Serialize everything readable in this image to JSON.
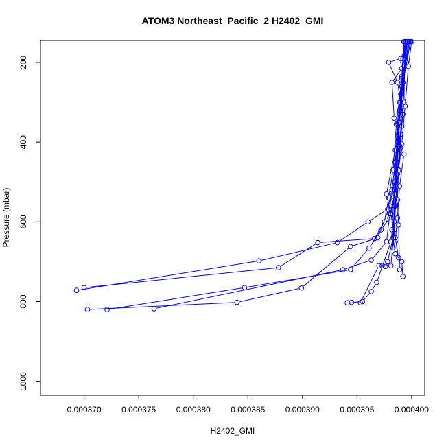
{
  "chart_data": {
    "type": "line",
    "title": "ATOM3 Northeast_Pacific_2 H2402_GMI",
    "xlabel": "H2402_GMI",
    "ylabel": "Pressure (mbar)",
    "xlim": [
      0.000366,
      0.0004012
    ],
    "ylim": [
      1035,
      145
    ],
    "y_reversed": true,
    "x_ticks": [
      "0.000370",
      "0.000375",
      "0.000380",
      "0.000385",
      "0.000390",
      "0.000395",
      "0.000400"
    ],
    "x_tick_values": [
      0.00037,
      0.000375,
      0.00038,
      0.000385,
      0.00039,
      0.000395,
      0.0004
    ],
    "y_ticks": [
      "200",
      "400",
      "600",
      "800",
      "1000"
    ],
    "y_tick_values": [
      200,
      400,
      600,
      800,
      1000
    ],
    "grid": false,
    "legend": "none",
    "color": "#0000ff",
    "marker": "open-circle",
    "series": [
      {
        "x": [
          0.0003996,
          0.0003992,
          0.0003988,
          0.0003985,
          0.0003982,
          0.0003978,
          0.000396,
          0.0003932,
          0.000386,
          0.0003693
        ],
        "y": [
          148,
          250,
          350,
          450,
          520,
          568,
          600,
          652,
          698,
          772
        ]
      },
      {
        "x": [
          0.0003998,
          0.0003991,
          0.0003986,
          0.0003983,
          0.0003979,
          0.0003975,
          0.0003966,
          0.0003914,
          0.0003878,
          0.00037
        ],
        "y": [
          148,
          240,
          355,
          470,
          540,
          600,
          642,
          652,
          715,
          765
        ]
      },
      {
        "x": [
          0.0003994,
          0.0003993,
          0.0003989,
          0.0003985,
          0.000398,
          0.0003972,
          0.0003961,
          0.0003944,
          0.0003847,
          0.0003721
        ],
        "y": [
          148,
          300,
          420,
          520,
          590,
          620,
          666,
          720,
          765,
          820
        ]
      },
      {
        "x": [
          0.0003999,
          0.000399,
          0.0003987,
          0.0003984,
          0.000398,
          0.0003969,
          0.0003944,
          0.0003899,
          0.000384,
          0.0003703
        ],
        "y": [
          148,
          280,
          400,
          500,
          560,
          640,
          662,
          766,
          802,
          820
        ]
      },
      {
        "x": [
          0.0003997,
          0.0003989,
          0.0003986,
          0.0003984,
          0.000398,
          0.0003977,
          0.0003963,
          0.0003937,
          0.0003764
        ],
        "y": [
          148,
          320,
          460,
          545,
          580,
          650,
          696,
          720,
          818
        ]
      },
      {
        "x": [
          0.0003995,
          0.0003991,
          0.0003988,
          0.0003985,
          0.0003981,
          0.0003968,
          0.0003963,
          0.0003955,
          0.0003945
        ],
        "y": [
          148,
          360,
          470,
          560,
          650,
          752,
          775,
          800,
          802
        ]
      },
      {
        "x": [
          0.0003993,
          0.000399,
          0.0003987,
          0.0003984,
          0.0003981,
          0.000397,
          0.0003953,
          0.0003941
        ],
        "y": [
          148,
          380,
          480,
          620,
          710,
          710,
          803,
          803
        ]
      },
      {
        "x": [
          0.0003996,
          0.0003992,
          0.0003988,
          0.0003985,
          0.0003983,
          0.0003978,
          0.0003976,
          0.0003973
        ],
        "y": [
          148,
          200,
          380,
          500,
          640,
          700,
          712,
          710
        ]
      },
      {
        "x": [
          0.0003998,
          0.0003995,
          0.000399,
          0.0003986,
          0.0003984,
          0.0003982,
          0.0003985,
          0.0003991,
          0.0003992
        ],
        "y": [
          148,
          200,
          300,
          420,
          520,
          620,
          680,
          700,
          737
        ]
      },
      {
        "x": [
          0.0003994,
          0.0003992,
          0.0003991,
          0.0003989,
          0.0003987,
          0.0003985,
          0.0003984,
          0.0003983
        ],
        "y": [
          148,
          190,
          260,
          350,
          440,
          530,
          600,
          665
        ]
      },
      {
        "x": [
          0.0003997,
          0.000399,
          0.0003979,
          0.0003987,
          0.0003992,
          0.0003988,
          0.0003986,
          0.0003984
        ],
        "y": [
          148,
          190,
          200,
          250,
          330,
          410,
          480,
          560
        ]
      },
      {
        "x": [
          0.0003995,
          0.0003991,
          0.0003982,
          0.0003984,
          0.0003993,
          0.0003989,
          0.0003987,
          0.0003985
        ],
        "y": [
          148,
          215,
          250,
          340,
          430,
          510,
          590,
          650
        ]
      },
      {
        "x": [
          0.0004,
          0.0003997,
          0.0003994,
          0.0003991,
          0.0003988,
          0.0003987,
          0.0003988,
          0.0003989
        ],
        "y": [
          148,
          210,
          310,
          405,
          470,
          545,
          608,
          720
        ]
      },
      {
        "x": [
          0.0003993,
          0.0003991,
          0.0003989,
          0.0003985,
          0.0003977,
          0.0003981,
          0.0003985,
          0.0003988
        ],
        "y": [
          148,
          235,
          300,
          420,
          530,
          580,
          640,
          690
        ]
      }
    ]
  }
}
